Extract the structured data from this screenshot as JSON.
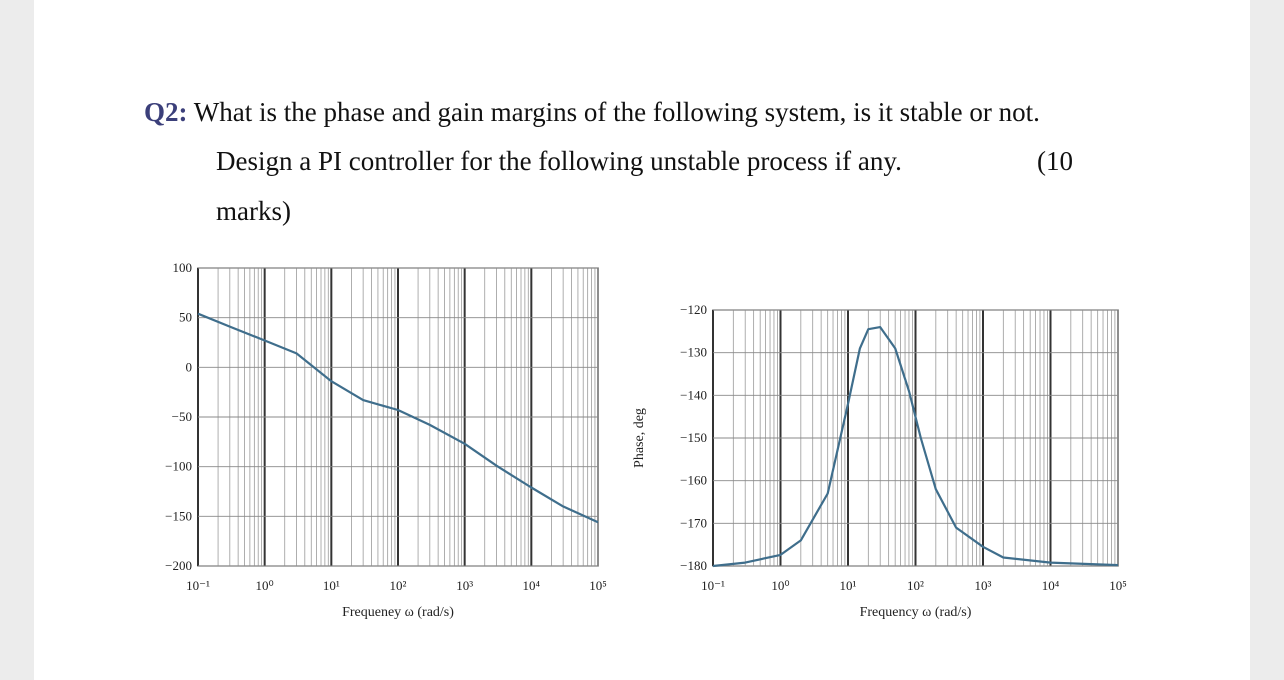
{
  "question": {
    "number": "Q2:",
    "line1": "What is the phase and gain margins of the following system, is it stable or not.",
    "line2": "Design a PI controller for the following unstable process if any.",
    "marks_open": "(10",
    "line3": "marks)"
  },
  "chart_data": [
    {
      "type": "line",
      "title": "",
      "xlabel": "Frequeney ω (rad/s)",
      "ylabel": "",
      "xscale": "log",
      "xlim": [
        0.1,
        100000
      ],
      "ylim": [
        -200,
        100
      ],
      "x_tick_labels": [
        "10⁻¹",
        "10⁰",
        "10¹",
        "10²",
        "10³",
        "10⁴",
        "10⁵"
      ],
      "y_tick_labels": [
        "100",
        "50",
        "0",
        "−50",
        "−100",
        "−150",
        "−200"
      ],
      "y_ticks": [
        100,
        50,
        0,
        -50,
        -100,
        -150,
        -200
      ],
      "grid": true,
      "series": [
        {
          "x": [
            0.1,
            0.3,
            1,
            3,
            10,
            30,
            100,
            300,
            1000,
            3000,
            10000,
            30000,
            100000
          ],
          "y": [
            54,
            41,
            27,
            14,
            -14,
            -33,
            -43,
            -58,
            -77,
            -99,
            -121,
            -140,
            -156
          ]
        }
      ]
    },
    {
      "type": "line",
      "title": "",
      "xlabel": "Frequency ω (rad/s)",
      "ylabel": "Phase, deg",
      "xscale": "log",
      "xlim": [
        0.1,
        100000
      ],
      "ylim": [
        -180,
        -120
      ],
      "x_tick_labels": [
        "10⁻¹",
        "10⁰",
        "10¹",
        "10²",
        "10³",
        "10⁴",
        "10⁵"
      ],
      "y_tick_labels": [
        "−120",
        "−130",
        "−140",
        "−150",
        "−160",
        "−170",
        "−180"
      ],
      "y_ticks": [
        -120,
        -130,
        -140,
        -150,
        -160,
        -170,
        -180
      ],
      "grid": true,
      "series": [
        {
          "x": [
            0.1,
            0.3,
            1,
            2,
            5,
            10,
            15,
            20,
            30,
            50,
            80,
            120,
            200,
            400,
            1000,
            2000,
            10000,
            100000
          ],
          "y": [
            -180,
            -179.2,
            -177.4,
            -174,
            -163,
            -142,
            -129,
            -124.5,
            -124,
            -129,
            -139,
            -150,
            -162,
            -171,
            -175.5,
            -178,
            -179.2,
            -179.8
          ]
        }
      ]
    }
  ]
}
